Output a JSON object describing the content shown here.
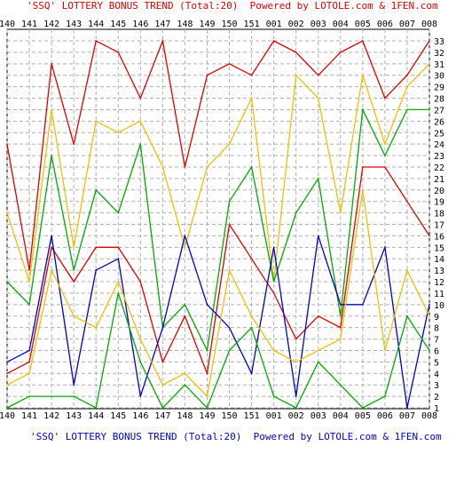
{
  "chart_data": {
    "type": "line",
    "title": "'SSQ' LOTTERY BONUS TREND (Total:20)  Powered by LOTOLE.com & 1FEN.com",
    "categories": [
      "140",
      "141",
      "142",
      "143",
      "144",
      "145",
      "146",
      "147",
      "148",
      "149",
      "150",
      "151",
      "001",
      "002",
      "003",
      "004",
      "005",
      "006",
      "007",
      "008"
    ],
    "ylim": [
      1,
      33
    ],
    "y_ticks": [
      1,
      2,
      3,
      4,
      5,
      6,
      7,
      8,
      9,
      10,
      11,
      12,
      13,
      14,
      15,
      16,
      17,
      18,
      19,
      20,
      21,
      22,
      23,
      24,
      25,
      26,
      27,
      28,
      29,
      30,
      31,
      32,
      33
    ],
    "grid": true,
    "series": [
      {
        "color": "#dd0000",
        "values": [
          24,
          13,
          31,
          24,
          33,
          32,
          28,
          33,
          22,
          30,
          31,
          30,
          33,
          32,
          30,
          32,
          33,
          28,
          30,
          33
        ]
      },
      {
        "color": "#f0c000",
        "values": [
          18,
          12,
          27,
          15,
          26,
          25,
          26,
          22,
          15,
          22,
          24,
          28,
          12,
          30,
          28,
          18,
          30,
          24,
          29,
          31
        ]
      },
      {
        "color": "#00aa00",
        "values": [
          12,
          10,
          23,
          13,
          20,
          18,
          24,
          8,
          10,
          6,
          19,
          22,
          12,
          18,
          21,
          9,
          27,
          23,
          27,
          27
        ]
      },
      {
        "color": "#dd0000",
        "values": [
          4,
          5,
          15,
          12,
          15,
          15,
          12,
          5,
          9,
          4,
          17,
          14,
          11,
          7,
          9,
          8,
          22,
          22,
          19,
          16
        ]
      },
      {
        "color": "#0000cc",
        "values": [
          5,
          6,
          16,
          3,
          13,
          14,
          2,
          8,
          16,
          10,
          8,
          4,
          15,
          2,
          16,
          10,
          10,
          15,
          1,
          10
        ]
      },
      {
        "color": "#f0c000",
        "values": [
          3,
          4,
          13,
          9,
          8,
          12,
          7,
          3,
          4,
          2,
          13,
          9,
          6,
          5,
          6,
          7,
          20,
          6,
          13,
          9
        ]
      },
      {
        "color": "#00aa00",
        "values": [
          1,
          2,
          2,
          2,
          1,
          11,
          5,
          1,
          3,
          1,
          6,
          8,
          2,
          1,
          5,
          3,
          1,
          2,
          9,
          6
        ]
      }
    ]
  }
}
